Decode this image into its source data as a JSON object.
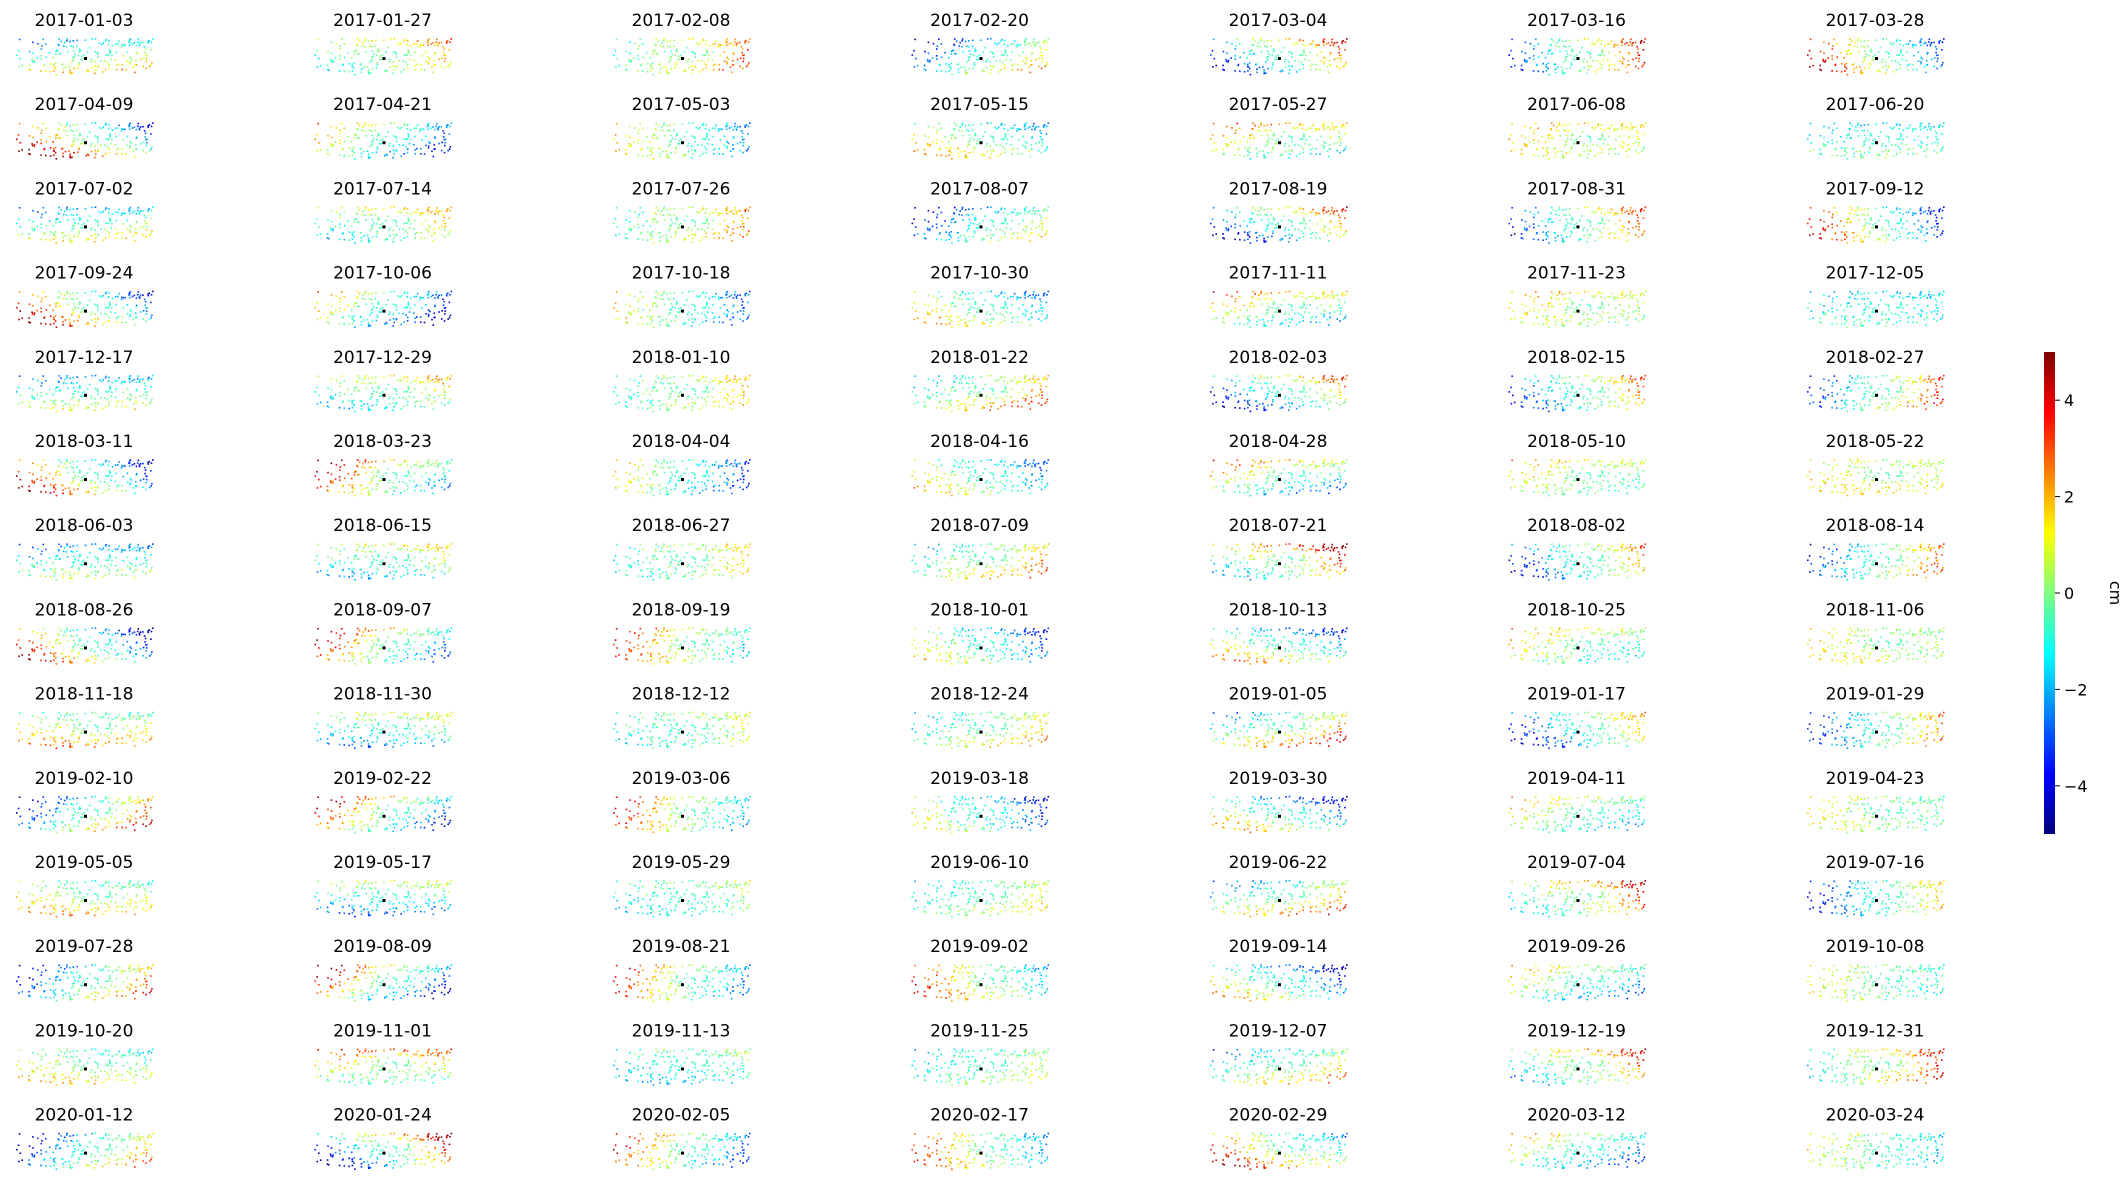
{
  "chart_data": {
    "type": "scatter",
    "description_kind": "small-multiples",
    "layout": {
      "rows": 14,
      "cols": 7
    },
    "panels": [
      "2017-01-03",
      "2017-01-27",
      "2017-02-08",
      "2017-02-20",
      "2017-03-04",
      "2017-03-16",
      "2017-03-28",
      "2017-04-09",
      "2017-04-21",
      "2017-05-03",
      "2017-05-15",
      "2017-05-27",
      "2017-06-08",
      "2017-06-20",
      "2017-07-02",
      "2017-07-14",
      "2017-07-26",
      "2017-08-07",
      "2017-08-19",
      "2017-08-31",
      "2017-09-12",
      "2017-09-24",
      "2017-10-06",
      "2017-10-18",
      "2017-10-30",
      "2017-11-11",
      "2017-11-23",
      "2017-12-05",
      "2017-12-17",
      "2017-12-29",
      "2018-01-10",
      "2018-01-22",
      "2018-02-03",
      "2018-02-15",
      "2018-02-27",
      "2018-03-11",
      "2018-03-23",
      "2018-04-04",
      "2018-04-16",
      "2018-04-28",
      "2018-05-10",
      "2018-05-22",
      "2018-06-03",
      "2018-06-15",
      "2018-06-27",
      "2018-07-09",
      "2018-07-21",
      "2018-08-02",
      "2018-08-14",
      "2018-08-26",
      "2018-09-07",
      "2018-09-19",
      "2018-10-01",
      "2018-10-13",
      "2018-10-25",
      "2018-11-06",
      "2018-11-18",
      "2018-11-30",
      "2018-12-12",
      "2018-12-24",
      "2019-01-05",
      "2019-01-17",
      "2019-01-29",
      "2019-02-10",
      "2019-02-22",
      "2019-03-06",
      "2019-03-18",
      "2019-03-30",
      "2019-04-11",
      "2019-04-23",
      "2019-05-05",
      "2019-05-17",
      "2019-05-29",
      "2019-06-10",
      "2019-06-22",
      "2019-07-04",
      "2019-07-16",
      "2019-07-28",
      "2019-08-09",
      "2019-08-21",
      "2019-09-02",
      "2019-09-14",
      "2019-09-26",
      "2019-10-08",
      "2019-10-20",
      "2019-11-01",
      "2019-11-13",
      "2019-11-25",
      "2019-12-07",
      "2019-12-19",
      "2019-12-31",
      "2020-01-12",
      "2020-01-24",
      "2020-02-05",
      "2020-02-17",
      "2020-02-29",
      "2020-03-12",
      "2020-03-24"
    ],
    "colorbar": {
      "label": "cm",
      "min": -5,
      "max": 5,
      "ticks": [
        4,
        2,
        0,
        -2,
        -4
      ],
      "colormap": "jet",
      "colormap_stops": [
        "#00007f",
        "#0000ff",
        "#007fff",
        "#00ffff",
        "#7fff7f",
        "#ffff00",
        "#ff7f00",
        "#ff0000",
        "#7f0000"
      ]
    },
    "reference_point_color": "#000000",
    "axes_visible": false
  }
}
